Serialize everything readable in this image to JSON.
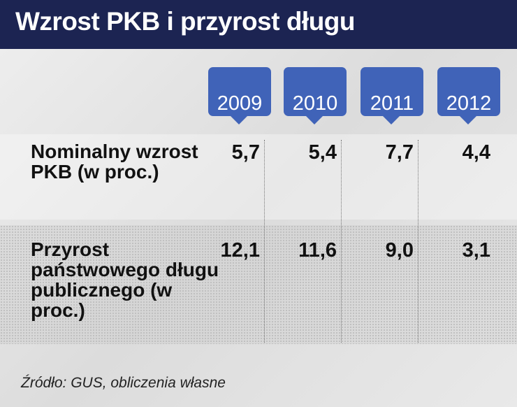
{
  "header": {
    "title": "Wzrost PKB i przyrost długu"
  },
  "table": {
    "columns": [
      "2009",
      "2010",
      "2011",
      "2012"
    ],
    "rows": [
      {
        "label": "Nominalny wzrost PKB (w proc.)",
        "cells": [
          "5,7",
          "5,4",
          "7,7",
          "4,4"
        ]
      },
      {
        "label": "Przyrost państwowego długu publicznego (w proc.)",
        "cells": [
          "12,1",
          "11,6",
          "9,0",
          "3,1"
        ]
      }
    ]
  },
  "source": "Źródło: GUS, obliczenia własne"
}
